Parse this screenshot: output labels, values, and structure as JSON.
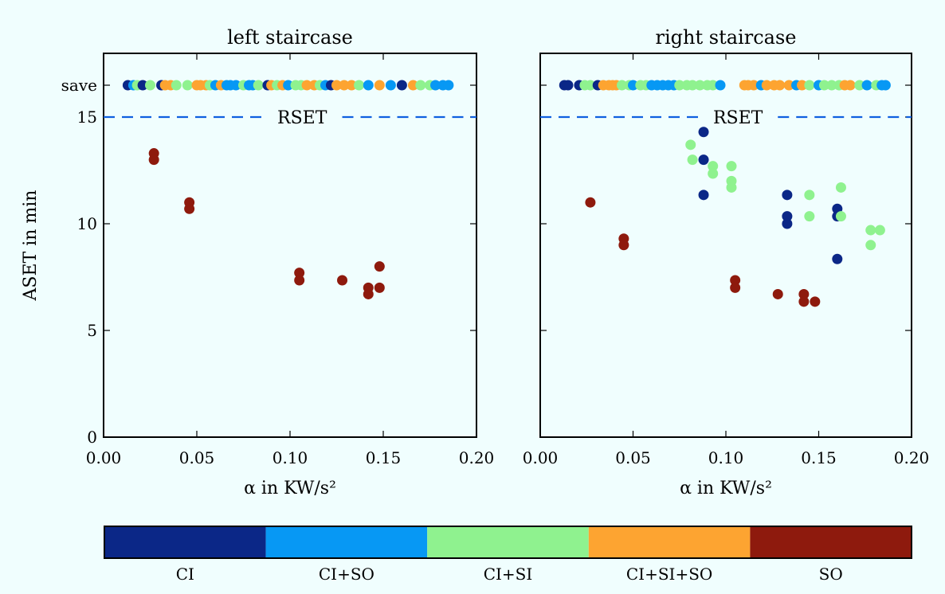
{
  "chart_data": [
    {
      "type": "scatter",
      "title": "left staircase",
      "xlabel": "α in KW/s²",
      "ylabel": "ASET in min",
      "xlim": [
        0,
        0.2
      ],
      "ylim": [
        0,
        16.5
      ],
      "xticks": [
        "0.00",
        "0.05",
        "0.10",
        "0.15",
        "0.20"
      ],
      "yticks": [
        "0",
        "5",
        "10",
        "15",
        "save"
      ],
      "rset": {
        "label": "RSET",
        "value": 15
      },
      "save_points": [
        {
          "x": 0.013,
          "c": "CI"
        },
        {
          "x": 0.016,
          "c": "CI+SO"
        },
        {
          "x": 0.018,
          "c": "CI+SI"
        },
        {
          "x": 0.021,
          "c": "CI"
        },
        {
          "x": 0.025,
          "c": "CI+SI"
        },
        {
          "x": 0.031,
          "c": "CI"
        },
        {
          "x": 0.033,
          "c": "CI+SI+SO"
        },
        {
          "x": 0.036,
          "c": "CI+SI+SO"
        },
        {
          "x": 0.039,
          "c": "CI+SI"
        },
        {
          "x": 0.045,
          "c": "CI+SI"
        },
        {
          "x": 0.05,
          "c": "CI+SI+SO"
        },
        {
          "x": 0.052,
          "c": "CI+SI+SO"
        },
        {
          "x": 0.055,
          "c": "CI+SI+SO"
        },
        {
          "x": 0.057,
          "c": "CI+SI"
        },
        {
          "x": 0.06,
          "c": "CI+SO"
        },
        {
          "x": 0.063,
          "c": "CI+SI+SO"
        },
        {
          "x": 0.066,
          "c": "CI+SO"
        },
        {
          "x": 0.068,
          "c": "CI+SO"
        },
        {
          "x": 0.071,
          "c": "CI+SO"
        },
        {
          "x": 0.075,
          "c": "CI+SI"
        },
        {
          "x": 0.078,
          "c": "CI+SO"
        },
        {
          "x": 0.08,
          "c": "CI+SO"
        },
        {
          "x": 0.083,
          "c": "CI+SI"
        },
        {
          "x": 0.088,
          "c": "CI"
        },
        {
          "x": 0.09,
          "c": "CI+SI+SO"
        },
        {
          "x": 0.093,
          "c": "CI+SI"
        },
        {
          "x": 0.096,
          "c": "CI+SI+SO"
        },
        {
          "x": 0.099,
          "c": "CI+SO"
        },
        {
          "x": 0.103,
          "c": "CI+SI"
        },
        {
          "x": 0.106,
          "c": "CI+SI"
        },
        {
          "x": 0.109,
          "c": "CI+SI+SO"
        },
        {
          "x": 0.113,
          "c": "CI+SI+SO"
        },
        {
          "x": 0.116,
          "c": "CI+SI"
        },
        {
          "x": 0.119,
          "c": "CI+SO"
        },
        {
          "x": 0.122,
          "c": "CI"
        },
        {
          "x": 0.125,
          "c": "CI+SI+SO"
        },
        {
          "x": 0.129,
          "c": "CI+SI+SO"
        },
        {
          "x": 0.133,
          "c": "CI+SI+SO"
        },
        {
          "x": 0.137,
          "c": "CI+SI"
        },
        {
          "x": 0.142,
          "c": "CI+SO"
        },
        {
          "x": 0.148,
          "c": "CI+SI+SO"
        },
        {
          "x": 0.154,
          "c": "CI+SO"
        },
        {
          "x": 0.16,
          "c": "CI"
        },
        {
          "x": 0.166,
          "c": "CI+SI+SO"
        },
        {
          "x": 0.17,
          "c": "CI+SI"
        },
        {
          "x": 0.175,
          "c": "CI+SI"
        },
        {
          "x": 0.178,
          "c": "CI+SO"
        },
        {
          "x": 0.182,
          "c": "CI+SO"
        },
        {
          "x": 0.185,
          "c": "CI+SO"
        }
      ],
      "points": [
        {
          "x": 0.027,
          "y": 13.3,
          "c": "SO"
        },
        {
          "x": 0.027,
          "y": 13.0,
          "c": "SO"
        },
        {
          "x": 0.046,
          "y": 11.0,
          "c": "SO"
        },
        {
          "x": 0.046,
          "y": 10.7,
          "c": "SO"
        },
        {
          "x": 0.105,
          "y": 7.7,
          "c": "SO"
        },
        {
          "x": 0.105,
          "y": 7.35,
          "c": "SO"
        },
        {
          "x": 0.128,
          "y": 7.35,
          "c": "SO"
        },
        {
          "x": 0.142,
          "y": 7.0,
          "c": "SO"
        },
        {
          "x": 0.142,
          "y": 6.7,
          "c": "SO"
        },
        {
          "x": 0.148,
          "y": 8.0,
          "c": "SO"
        },
        {
          "x": 0.148,
          "y": 7.0,
          "c": "SO"
        }
      ]
    },
    {
      "type": "scatter",
      "title": "right staircase",
      "xlabel": "α in KW/s²",
      "ylabel": "",
      "xlim": [
        0,
        0.2
      ],
      "ylim": [
        0,
        16.5
      ],
      "xticks": [
        "0.00",
        "0.05",
        "0.10",
        "0.15",
        "0.20"
      ],
      "rset": {
        "label": "RSET",
        "value": 15
      },
      "save_points": [
        {
          "x": 0.013,
          "c": "CI"
        },
        {
          "x": 0.015,
          "c": "CI"
        },
        {
          "x": 0.021,
          "c": "CI"
        },
        {
          "x": 0.024,
          "c": "CI+SI"
        },
        {
          "x": 0.027,
          "c": "CI+SI"
        },
        {
          "x": 0.031,
          "c": "CI"
        },
        {
          "x": 0.034,
          "c": "CI+SI+SO"
        },
        {
          "x": 0.037,
          "c": "CI+SI+SO"
        },
        {
          "x": 0.039,
          "c": "CI+SI+SO"
        },
        {
          "x": 0.041,
          "c": "CI+SI+SO"
        },
        {
          "x": 0.044,
          "c": "CI+SI"
        },
        {
          "x": 0.048,
          "c": "CI+SI"
        },
        {
          "x": 0.05,
          "c": "CI+SO"
        },
        {
          "x": 0.054,
          "c": "CI+SI"
        },
        {
          "x": 0.057,
          "c": "CI+SI"
        },
        {
          "x": 0.06,
          "c": "CI+SO"
        },
        {
          "x": 0.063,
          "c": "CI+SO"
        },
        {
          "x": 0.066,
          "c": "CI+SO"
        },
        {
          "x": 0.069,
          "c": "CI+SO"
        },
        {
          "x": 0.072,
          "c": "CI+SO"
        },
        {
          "x": 0.075,
          "c": "CI+SI"
        },
        {
          "x": 0.079,
          "c": "CI+SI"
        },
        {
          "x": 0.082,
          "c": "CI+SI"
        },
        {
          "x": 0.086,
          "c": "CI+SI"
        },
        {
          "x": 0.09,
          "c": "CI+SI"
        },
        {
          "x": 0.093,
          "c": "CI+SI"
        },
        {
          "x": 0.097,
          "c": "CI+SO"
        },
        {
          "x": 0.11,
          "c": "CI+SI+SO"
        },
        {
          "x": 0.112,
          "c": "CI+SI+SO"
        },
        {
          "x": 0.115,
          "c": "CI+SI+SO"
        },
        {
          "x": 0.119,
          "c": "CI+SO"
        },
        {
          "x": 0.122,
          "c": "CI+SI+SO"
        },
        {
          "x": 0.126,
          "c": "CI+SI+SO"
        },
        {
          "x": 0.129,
          "c": "CI+SI+SO"
        },
        {
          "x": 0.134,
          "c": "CI+SI+SO"
        },
        {
          "x": 0.138,
          "c": "CI+SO"
        },
        {
          "x": 0.141,
          "c": "CI+SI+SO"
        },
        {
          "x": 0.145,
          "c": "CI+SI"
        },
        {
          "x": 0.15,
          "c": "CI+SO"
        },
        {
          "x": 0.153,
          "c": "CI+SI"
        },
        {
          "x": 0.157,
          "c": "CI+SI"
        },
        {
          "x": 0.161,
          "c": "CI+SI"
        },
        {
          "x": 0.164,
          "c": "CI+SI+SO"
        },
        {
          "x": 0.167,
          "c": "CI+SI+SO"
        },
        {
          "x": 0.172,
          "c": "CI+SI"
        },
        {
          "x": 0.176,
          "c": "CI+SO"
        },
        {
          "x": 0.181,
          "c": "CI+SI"
        },
        {
          "x": 0.184,
          "c": "CI+SO"
        },
        {
          "x": 0.186,
          "c": "CI+SO"
        }
      ],
      "points": [
        {
          "x": 0.027,
          "y": 11.0,
          "c": "SO"
        },
        {
          "x": 0.045,
          "y": 9.3,
          "c": "SO"
        },
        {
          "x": 0.045,
          "y": 9.0,
          "c": "SO"
        },
        {
          "x": 0.081,
          "y": 13.7,
          "c": "CI+SI"
        },
        {
          "x": 0.082,
          "y": 13.0,
          "c": "CI+SI"
        },
        {
          "x": 0.088,
          "y": 14.3,
          "c": "CI"
        },
        {
          "x": 0.088,
          "y": 13.0,
          "c": "CI"
        },
        {
          "x": 0.088,
          "y": 11.35,
          "c": "CI"
        },
        {
          "x": 0.093,
          "y": 12.7,
          "c": "CI+SI"
        },
        {
          "x": 0.093,
          "y": 12.35,
          "c": "CI+SI"
        },
        {
          "x": 0.103,
          "y": 12.7,
          "c": "CI+SI"
        },
        {
          "x": 0.103,
          "y": 12.0,
          "c": "CI+SI"
        },
        {
          "x": 0.103,
          "y": 11.7,
          "c": "CI+SI"
        },
        {
          "x": 0.105,
          "y": 7.35,
          "c": "SO"
        },
        {
          "x": 0.105,
          "y": 7.0,
          "c": "SO"
        },
        {
          "x": 0.128,
          "y": 6.7,
          "c": "SO"
        },
        {
          "x": 0.133,
          "y": 11.35,
          "c": "CI"
        },
        {
          "x": 0.133,
          "y": 10.35,
          "c": "CI"
        },
        {
          "x": 0.133,
          "y": 10.0,
          "c": "CI"
        },
        {
          "x": 0.142,
          "y": 6.7,
          "c": "SO"
        },
        {
          "x": 0.142,
          "y": 6.35,
          "c": "SO"
        },
        {
          "x": 0.145,
          "y": 11.35,
          "c": "CI+SI"
        },
        {
          "x": 0.145,
          "y": 10.35,
          "c": "CI+SI"
        },
        {
          "x": 0.148,
          "y": 6.35,
          "c": "SO"
        },
        {
          "x": 0.16,
          "y": 10.7,
          "c": "CI"
        },
        {
          "x": 0.16,
          "y": 10.35,
          "c": "CI"
        },
        {
          "x": 0.16,
          "y": 8.35,
          "c": "CI"
        },
        {
          "x": 0.162,
          "y": 11.7,
          "c": "CI+SI"
        },
        {
          "x": 0.162,
          "y": 10.35,
          "c": "CI+SI"
        },
        {
          "x": 0.178,
          "y": 9.7,
          "c": "CI+SI"
        },
        {
          "x": 0.178,
          "y": 9.0,
          "c": "CI+SI"
        },
        {
          "x": 0.183,
          "y": 9.7,
          "c": "CI+SI"
        }
      ]
    }
  ],
  "legend": {
    "placement": "bottom",
    "categories": [
      "CI",
      "CI+SO",
      "CI+SI",
      "CI+SI+SO",
      "SO"
    ],
    "colors": [
      "#0b2787",
      "#0798f4",
      "#8ff28f",
      "#fda431",
      "#8e1a0d"
    ]
  },
  "colors": {
    "background": "#f0fefe",
    "rset_line": "#1060e0"
  }
}
